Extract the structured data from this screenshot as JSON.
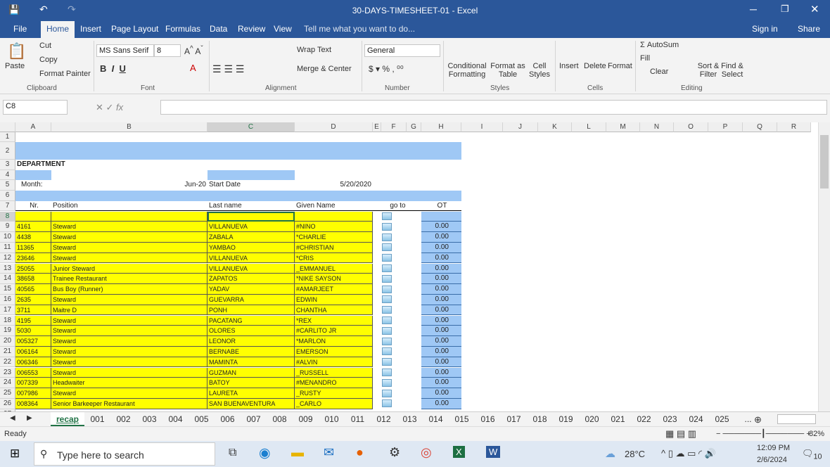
{
  "window": {
    "title": "30-DAYS-TIMESHEET-01 - Excel"
  },
  "menu_tabs": [
    "File",
    "Home",
    "Insert",
    "Page Layout",
    "Formulas",
    "Data",
    "Review",
    "View"
  ],
  "tell_me": "Tell me what you want to do...",
  "sign_in": "Sign in",
  "share": "Share",
  "ribbon": {
    "clipboard": {
      "paste": "Paste",
      "cut": "Cut",
      "copy": "Copy",
      "format_painter": "Format Painter",
      "label": "Clipboard"
    },
    "font": {
      "name": "MS Sans Serif",
      "size": "8",
      "label": "Font"
    },
    "alignment": {
      "wrap": "Wrap Text",
      "merge": "Merge & Center",
      "label": "Alignment"
    },
    "number": {
      "format": "General",
      "label": "Number"
    },
    "styles": {
      "conditional": "Conditional Formatting",
      "format_table": "Format as Table",
      "cell_styles": "Cell Styles",
      "label": "Styles"
    },
    "cells": {
      "insert": "Insert",
      "delete": "Delete",
      "format": "Format",
      "label": "Cells"
    },
    "editing": {
      "autosum": "AutoSum",
      "fill": "Fill",
      "clear": "Clear",
      "sort": "Sort & Filter",
      "find": "Find & Select",
      "label": "Editing"
    }
  },
  "name_box": "C8",
  "formula": "",
  "columns": [
    "A",
    "B",
    "C",
    "D",
    "E",
    "F",
    "G",
    "H",
    "I",
    "J",
    "K",
    "L",
    "M",
    "N",
    "O",
    "P",
    "Q",
    "R"
  ],
  "sheet": {
    "department": "DEPARTMENT",
    "month_label": "Month:",
    "month_value": "Jun-20",
    "start_label": "Start Date",
    "start_value": "5/20/2020",
    "headers": {
      "nr": "Nr.",
      "position": "Position",
      "last": "Last name",
      "given": "Given Name",
      "goto": "go to",
      "ot": "OT"
    },
    "rows": [
      [
        "4161",
        "Steward",
        "VILLANUEVA",
        "#NINO",
        "0.00"
      ],
      [
        "4438",
        "Steward",
        "ZABALA",
        "*CHARLIE",
        "0.00"
      ],
      [
        "11365",
        "Steward",
        "YAMBAO",
        "#CHRISTIAN",
        "0.00"
      ],
      [
        "23646",
        "Steward",
        "VILLANUEVA",
        "*CRIS",
        "0.00"
      ],
      [
        "25055",
        "Junior Steward",
        "VILLANUEVA",
        "_EMMANUEL",
        "0.00"
      ],
      [
        "38658",
        "Trainee Restaurant",
        "ZAPATOS",
        "*NIKE SAYSON",
        "0.00"
      ],
      [
        "40565",
        "Bus Boy (Runner)",
        "YADAV",
        "#AMARJEET",
        "0.00"
      ],
      [
        "2635",
        "Steward",
        "GUEVARRA",
        "EDWIN",
        "0.00"
      ],
      [
        "3711",
        "Maitre D",
        "PONH",
        "CHANTHA",
        "0.00"
      ],
      [
        "4195",
        "Steward",
        "PACATANG",
        "*REX",
        "0.00"
      ],
      [
        "5030",
        "Steward",
        "OLORES",
        "#CARLITO JR",
        "0.00"
      ],
      [
        "005327",
        "Steward",
        "LEONOR",
        "*MARLON",
        "0.00"
      ],
      [
        "006164",
        "Steward",
        "BERNABE",
        "EMERSON",
        "0.00"
      ],
      [
        "006346",
        "Steward",
        "MAMINTA",
        "#ALVIN",
        "0.00"
      ],
      [
        "006553",
        "Steward",
        "GUZMAN",
        "_RUSSELL",
        "0.00"
      ],
      [
        "007339",
        "Headwaiter",
        "BATOY",
        "#MENANDRO",
        "0.00"
      ],
      [
        "007986",
        "Steward",
        "LAURETA",
        "_RUSTY",
        "0.00"
      ],
      [
        "008364",
        "Senior Barkeeper Restaurant",
        "SAN BUENAVENTURA",
        "_CARLO",
        "0.00"
      ]
    ]
  },
  "sheet_tabs": [
    "recap",
    "001",
    "002",
    "003",
    "004",
    "005",
    "006",
    "007",
    "008",
    "009",
    "010",
    "011",
    "012",
    "013",
    "014",
    "015",
    "016",
    "017",
    "018",
    "019",
    "020",
    "021",
    "022",
    "023",
    "024",
    "025",
    "..."
  ],
  "status": {
    "ready": "Ready",
    "zoom": "82%"
  },
  "taskbar": {
    "search": "Type here to search",
    "temp": "28°C",
    "time": "12:09 PM",
    "date": "2/6/2024",
    "notif": "10"
  },
  "colors": {
    "title": "#2b579a",
    "yellow": "#ffff00",
    "blue": "#9fc8f5"
  }
}
